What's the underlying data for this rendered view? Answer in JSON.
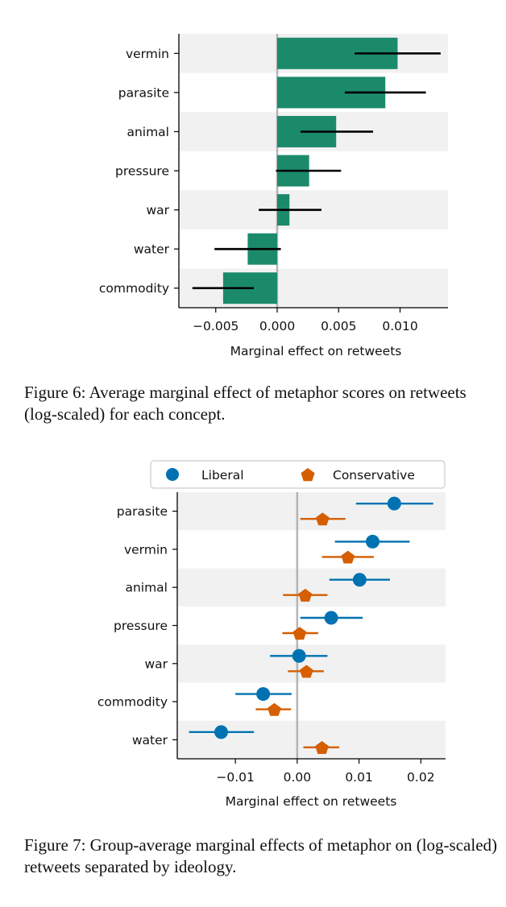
{
  "figures": [
    {
      "caption": "Figure 6: Average marginal effect of metaphor scores on retweets (log-scaled) for each concept."
    },
    {
      "caption": "Figure 7: Group-average marginal effects of metaphor on (log-scaled) retweets separated by ideology."
    }
  ],
  "chart_data": [
    {
      "type": "bar",
      "orientation": "horizontal",
      "title": "",
      "xlabel": "Marginal effect on retweets",
      "ylabel": "",
      "categories": [
        "vermin",
        "parasite",
        "animal",
        "pressure",
        "war",
        "water",
        "commodity"
      ],
      "values": [
        0.0098,
        0.0088,
        0.0048,
        0.0026,
        0.001,
        -0.0024,
        -0.0044
      ],
      "ci_low": [
        0.0063,
        0.0055,
        0.0019,
        -0.0001,
        -0.0015,
        -0.0051,
        -0.0069
      ],
      "ci_high": [
        0.0133,
        0.0121,
        0.0078,
        0.0052,
        0.0036,
        0.0003,
        -0.0019
      ],
      "xlim": [
        -0.008,
        0.0139
      ],
      "xticks": [
        -0.005,
        0.0,
        0.005,
        0.01
      ],
      "xtick_labels": [
        "−0.005",
        "0.000",
        "0.005",
        "0.010"
      ],
      "bar_color": "#1b8a6b",
      "zero_line": true,
      "alternating_row_shading": true
    },
    {
      "type": "scatter",
      "subtype": "dot-and-whisker",
      "title": "",
      "xlabel": "Marginal effect on retweets",
      "ylabel": "",
      "categories": [
        "parasite",
        "vermin",
        "animal",
        "pressure",
        "war",
        "commodity",
        "water"
      ],
      "xlim": [
        -0.0194,
        0.024
      ],
      "xticks": [
        -0.01,
        0.0,
        0.01,
        0.02
      ],
      "xtick_labels": [
        "−0.01",
        "0.00",
        "0.01",
        "0.02"
      ],
      "legend": {
        "position": "top",
        "entries": [
          "Liberal",
          "Conservative"
        ]
      },
      "series": [
        {
          "name": "Liberal",
          "marker": "circle",
          "color": "#0072b2",
          "values": [
            0.0157,
            0.0122,
            0.0101,
            0.0055,
            0.0003,
            -0.0055,
            -0.0123
          ],
          "ci_low": [
            0.0095,
            0.0061,
            0.0052,
            0.0005,
            -0.0044,
            -0.01,
            -0.0175
          ],
          "ci_high": [
            0.022,
            0.0182,
            0.015,
            0.0106,
            0.0049,
            -0.0009,
            -0.007
          ]
        },
        {
          "name": "Conservative",
          "marker": "pentagon",
          "color": "#d55e00",
          "values": [
            0.0041,
            0.0082,
            0.0013,
            0.0004,
            0.0015,
            -0.0037,
            0.004
          ],
          "ci_low": [
            0.0005,
            0.004,
            -0.0023,
            -0.0024,
            -0.0015,
            -0.0067,
            0.001
          ],
          "ci_high": [
            0.0078,
            0.0124,
            0.0049,
            0.0034,
            0.0043,
            -0.001,
            0.0068
          ]
        }
      ],
      "zero_line": true,
      "alternating_row_shading": true
    }
  ]
}
